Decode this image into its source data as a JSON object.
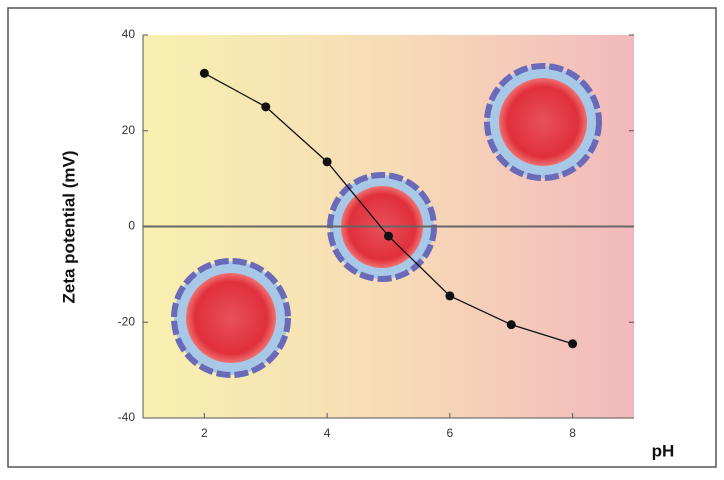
{
  "chart_data": {
    "type": "line",
    "x_label": "pH",
    "y_label": "Zeta potential (mV)",
    "x": [
      2,
      3,
      4,
      5,
      6,
      7,
      8
    ],
    "series": [
      {
        "color": "#111111",
        "values": [
          32,
          25,
          13.5,
          -2,
          -14.5,
          -20.5,
          -24.5
        ]
      }
    ],
    "xlim": [
      1,
      9
    ],
    "xticks": [
      2,
      4,
      6,
      8
    ],
    "ylim": [
      -40,
      40
    ],
    "yticks": [
      -40,
      -20,
      0,
      20,
      40
    ],
    "reference_line": 0
  }
}
